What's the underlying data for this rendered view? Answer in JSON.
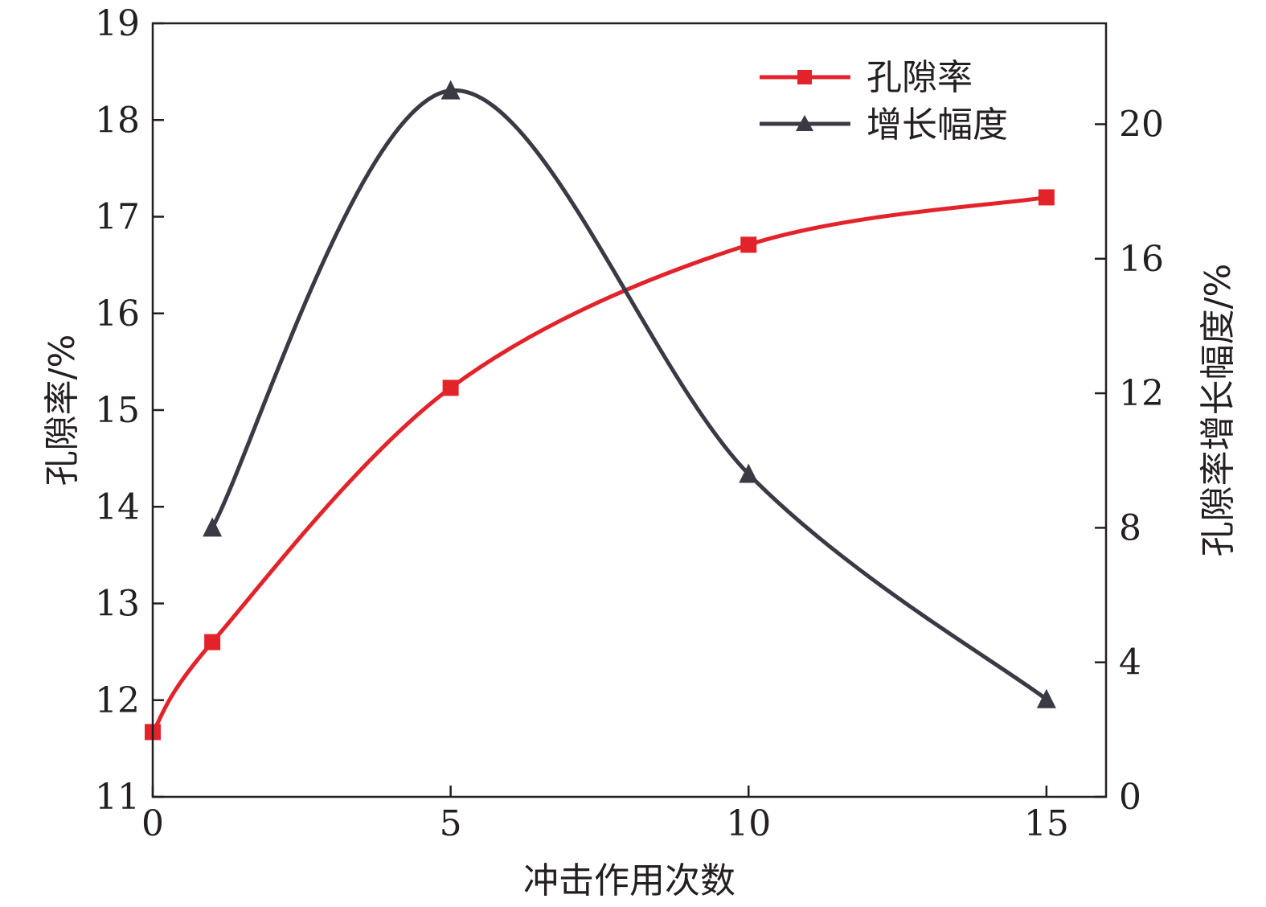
{
  "chart_data": {
    "type": "line",
    "xlabel": "冲击作用次数",
    "ylabel_left": "孔隙率/%",
    "ylabel_right": "孔隙率增长幅度/%",
    "xlim": [
      0,
      16
    ],
    "xticks": [
      0,
      5,
      10,
      15
    ],
    "ylim_left": [
      11,
      19
    ],
    "yticks_left": [
      11,
      12,
      13,
      14,
      15,
      16,
      17,
      18,
      19
    ],
    "ylim_right": [
      0,
      23
    ],
    "yticks_right": [
      0,
      4,
      8,
      12,
      16,
      20
    ],
    "grid": false,
    "legend_position": "top-right",
    "series": [
      {
        "name": "孔隙率",
        "axis": "left",
        "color": "#e2232a",
        "marker": "square",
        "x": [
          0,
          1,
          5,
          10,
          15
        ],
        "y": [
          11.67,
          12.6,
          15.23,
          16.71,
          17.2
        ]
      },
      {
        "name": "增长幅度",
        "axis": "right",
        "color": "#3a3a45",
        "marker": "triangle",
        "x": [
          1,
          5,
          10,
          15
        ],
        "y": [
          8.0,
          21.0,
          9.6,
          2.9
        ]
      }
    ]
  }
}
